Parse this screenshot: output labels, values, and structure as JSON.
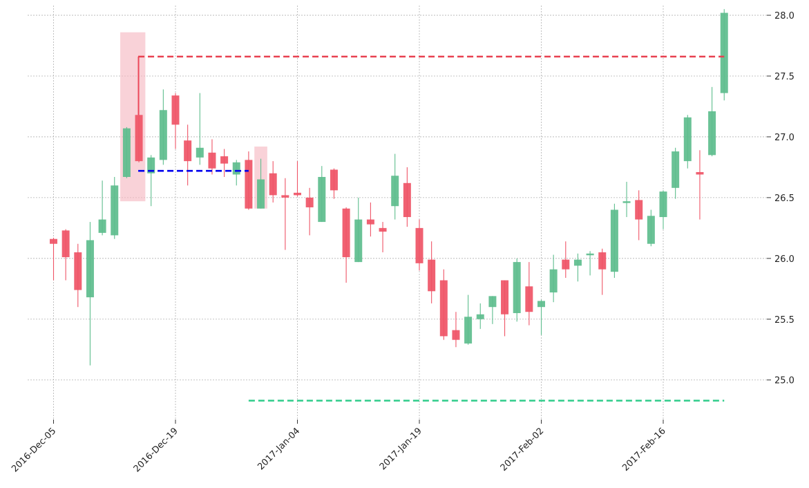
{
  "chart_data": {
    "type": "candlestick",
    "title": "",
    "xlabel": "",
    "ylabel": "",
    "ylim": [
      24.68,
      28.08
    ],
    "y_ticks": [
      "25.0",
      "25.5",
      "26.0",
      "26.5",
      "27.0",
      "27.5",
      "28.0"
    ],
    "x_tick_labels": [
      "2016-Dec-05",
      "2016-Dec-19",
      "2017-Jan-04",
      "2017-Jan-19",
      "2017-Feb-02",
      "2017-Feb-16"
    ],
    "x_tick_indices": [
      0,
      10,
      20,
      30,
      40,
      50
    ],
    "grid": true,
    "colors": {
      "up": "#5dbd8d",
      "down": "#ef5466",
      "resistance": "#e8404f",
      "support": "#2ecc8a",
      "entry": "#0000ee",
      "highlight": "#f5b7c0"
    },
    "candles": [
      {
        "date": "2016-Dec-05",
        "o": 26.16,
        "h": 26.17,
        "l": 25.82,
        "c": 26.12
      },
      {
        "date": "2016-Dec-06",
        "o": 26.23,
        "h": 26.24,
        "l": 25.82,
        "c": 26.01
      },
      {
        "date": "2016-Dec-07",
        "o": 26.05,
        "h": 26.12,
        "l": 25.6,
        "c": 25.74
      },
      {
        "date": "2016-Dec-08",
        "o": 25.68,
        "h": 26.3,
        "l": 25.12,
        "c": 26.15
      },
      {
        "date": "2016-Dec-09",
        "o": 26.21,
        "h": 26.64,
        "l": 26.19,
        "c": 26.32
      },
      {
        "date": "2016-Dec-12",
        "o": 26.19,
        "h": 26.67,
        "l": 26.16,
        "c": 26.6
      },
      {
        "date": "2016-Dec-13",
        "o": 26.67,
        "h": 27.08,
        "l": 26.66,
        "c": 27.07
      },
      {
        "date": "2016-Dec-14",
        "o": 27.18,
        "h": 27.66,
        "l": 26.79,
        "c": 26.8
      },
      {
        "date": "2016-Dec-15",
        "o": 26.7,
        "h": 26.85,
        "l": 26.43,
        "c": 26.83
      },
      {
        "date": "2016-Dec-16",
        "o": 26.81,
        "h": 27.39,
        "l": 26.77,
        "c": 27.22
      },
      {
        "date": "2016-Dec-19",
        "o": 27.34,
        "h": 27.36,
        "l": 26.9,
        "c": 27.1
      },
      {
        "date": "2016-Dec-20",
        "o": 26.97,
        "h": 27.1,
        "l": 26.6,
        "c": 26.8
      },
      {
        "date": "2016-Dec-21",
        "o": 26.83,
        "h": 27.36,
        "l": 26.77,
        "c": 26.91
      },
      {
        "date": "2016-Dec-22",
        "o": 26.87,
        "h": 26.98,
        "l": 26.69,
        "c": 26.74
      },
      {
        "date": "2016-Dec-23",
        "o": 26.84,
        "h": 26.9,
        "l": 26.67,
        "c": 26.78
      },
      {
        "date": "2016-Dec-27",
        "o": 26.69,
        "h": 26.81,
        "l": 26.6,
        "c": 26.79
      },
      {
        "date": "2016-Dec-28",
        "o": 26.81,
        "h": 26.88,
        "l": 26.4,
        "c": 26.41
      },
      {
        "date": "2016-Dec-29",
        "o": 26.41,
        "h": 26.82,
        "l": 26.41,
        "c": 26.65
      },
      {
        "date": "2016-Dec-30",
        "o": 26.7,
        "h": 26.8,
        "l": 26.46,
        "c": 26.52
      },
      {
        "date": "2017-Jan-03",
        "o": 26.52,
        "h": 26.66,
        "l": 26.07,
        "c": 26.5
      },
      {
        "date": "2017-Jan-04",
        "o": 26.54,
        "h": 26.8,
        "l": 26.51,
        "c": 26.52
      },
      {
        "date": "2017-Jan-05",
        "o": 26.5,
        "h": 26.58,
        "l": 26.19,
        "c": 26.42
      },
      {
        "date": "2017-Jan-06",
        "o": 26.3,
        "h": 26.76,
        "l": 26.3,
        "c": 26.67
      },
      {
        "date": "2017-Jan-09",
        "o": 26.73,
        "h": 26.74,
        "l": 26.49,
        "c": 26.56
      },
      {
        "date": "2017-Jan-10",
        "o": 26.41,
        "h": 26.42,
        "l": 25.8,
        "c": 26.01
      },
      {
        "date": "2017-Jan-11",
        "o": 25.97,
        "h": 26.5,
        "l": 25.97,
        "c": 26.32
      },
      {
        "date": "2017-Jan-12",
        "o": 26.32,
        "h": 26.46,
        "l": 26.18,
        "c": 26.28
      },
      {
        "date": "2017-Jan-13",
        "o": 26.25,
        "h": 26.3,
        "l": 26.05,
        "c": 26.22
      },
      {
        "date": "2017-Jan-17",
        "o": 26.43,
        "h": 26.86,
        "l": 26.32,
        "c": 26.68
      },
      {
        "date": "2017-Jan-18",
        "o": 26.62,
        "h": 26.75,
        "l": 26.26,
        "c": 26.34
      },
      {
        "date": "2017-Jan-19",
        "o": 26.25,
        "h": 26.32,
        "l": 25.9,
        "c": 25.96
      },
      {
        "date": "2017-Jan-20",
        "o": 25.99,
        "h": 26.14,
        "l": 25.63,
        "c": 25.73
      },
      {
        "date": "2017-Jan-23",
        "o": 25.82,
        "h": 25.91,
        "l": 25.33,
        "c": 25.36
      },
      {
        "date": "2017-Jan-24",
        "o": 25.41,
        "h": 25.56,
        "l": 25.27,
        "c": 25.33
      },
      {
        "date": "2017-Jan-25",
        "o": 25.3,
        "h": 25.7,
        "l": 25.29,
        "c": 25.52
      },
      {
        "date": "2017-Jan-26",
        "o": 25.5,
        "h": 25.63,
        "l": 25.42,
        "c": 25.54
      },
      {
        "date": "2017-Jan-27",
        "o": 25.6,
        "h": 25.69,
        "l": 25.46,
        "c": 25.69
      },
      {
        "date": "2017-Jan-30",
        "o": 25.82,
        "h": 25.82,
        "l": 25.36,
        "c": 25.54
      },
      {
        "date": "2017-Jan-31",
        "o": 25.55,
        "h": 26.0,
        "l": 25.48,
        "c": 25.97
      },
      {
        "date": "2017-Feb-01",
        "o": 25.77,
        "h": 25.97,
        "l": 25.45,
        "c": 25.56
      },
      {
        "date": "2017-Feb-02",
        "o": 25.6,
        "h": 25.66,
        "l": 25.37,
        "c": 25.65
      },
      {
        "date": "2017-Feb-03",
        "o": 25.72,
        "h": 26.03,
        "l": 25.64,
        "c": 25.91
      },
      {
        "date": "2017-Feb-06",
        "o": 25.99,
        "h": 26.14,
        "l": 25.84,
        "c": 25.91
      },
      {
        "date": "2017-Feb-07",
        "o": 25.94,
        "h": 26.04,
        "l": 25.81,
        "c": 25.99
      },
      {
        "date": "2017-Feb-08",
        "o": 26.03,
        "h": 26.06,
        "l": 25.86,
        "c": 26.04
      },
      {
        "date": "2017-Feb-09",
        "o": 26.05,
        "h": 26.08,
        "l": 25.7,
        "c": 25.91
      },
      {
        "date": "2017-Feb-10",
        "o": 25.89,
        "h": 26.45,
        "l": 25.84,
        "c": 26.4
      },
      {
        "date": "2017-Feb-13",
        "o": 26.46,
        "h": 26.63,
        "l": 26.34,
        "c": 26.47
      },
      {
        "date": "2017-Feb-14",
        "o": 26.48,
        "h": 26.56,
        "l": 26.15,
        "c": 26.32
      },
      {
        "date": "2017-Feb-15",
        "o": 26.12,
        "h": 26.4,
        "l": 26.1,
        "c": 26.35
      },
      {
        "date": "2017-Feb-16",
        "o": 26.34,
        "h": 26.56,
        "l": 26.24,
        "c": 26.55
      },
      {
        "date": "2017-Feb-17",
        "o": 26.58,
        "h": 26.91,
        "l": 26.49,
        "c": 26.88
      },
      {
        "date": "2017-Feb-21",
        "o": 26.8,
        "h": 27.18,
        "l": 26.74,
        "c": 27.16
      },
      {
        "date": "2017-Feb-22",
        "o": 26.71,
        "h": 26.89,
        "l": 26.32,
        "c": 26.69
      },
      {
        "date": "2017-Feb-23",
        "o": 26.85,
        "h": 27.41,
        "l": 26.84,
        "c": 27.21
      },
      {
        "date": "2017-Feb-24",
        "o": 27.36,
        "h": 28.05,
        "l": 27.3,
        "c": 28.02
      }
    ],
    "highlights": [
      {
        "from_index": 6,
        "to_index": 7,
        "y_low": 26.47,
        "y_high": 27.86
      },
      {
        "from_index": 17,
        "to_index": 17,
        "y_low": 26.41,
        "y_high": 26.92
      }
    ],
    "lines": [
      {
        "name": "resistance",
        "y": 27.66,
        "from_index": 7,
        "to_index": 55
      },
      {
        "name": "entry",
        "y": 26.72,
        "from_index": 7,
        "to_index": 16
      },
      {
        "name": "support",
        "y": 24.83,
        "from_index": 16,
        "to_index": 55
      }
    ]
  }
}
